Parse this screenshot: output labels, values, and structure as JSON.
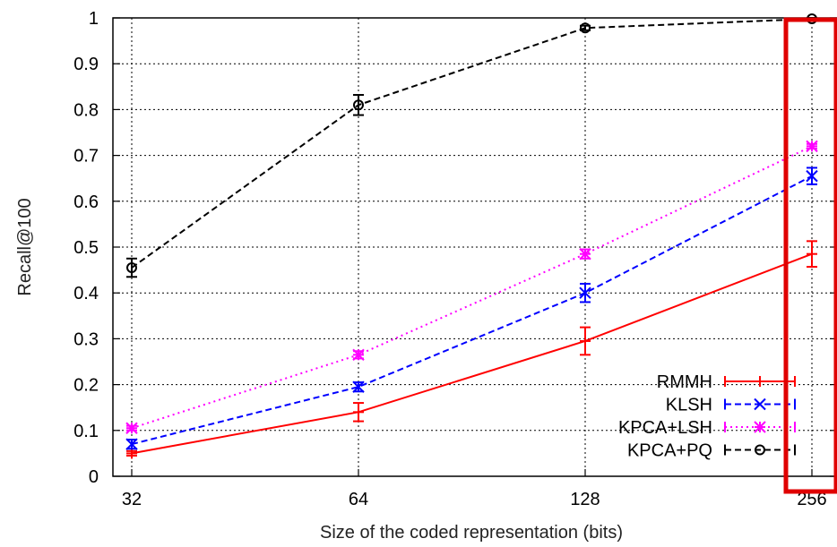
{
  "chart_data": {
    "type": "line",
    "xlabel": "Size of the coded representation (bits)",
    "ylabel": "Recall@100",
    "x_scale": "log2",
    "categories": [
      "32",
      "64",
      "128",
      "256"
    ],
    "x": [
      32,
      64,
      128,
      256
    ],
    "xlim": [
      32,
      256
    ],
    "ylim": [
      0,
      1
    ],
    "yticks": [
      "0",
      "0.1",
      "0.2",
      "0.3",
      "0.4",
      "0.5",
      "0.6",
      "0.7",
      "0.8",
      "0.9",
      "1"
    ],
    "grid": true,
    "legend_position": "bottom-right",
    "series": [
      {
        "name": "RMMH",
        "color": "#ff0000",
        "dash": "solid",
        "marker": "plus",
        "values": [
          0.05,
          0.14,
          0.295,
          0.485
        ],
        "errors": [
          0.005,
          0.02,
          0.03,
          0.028
        ]
      },
      {
        "name": "KLSH",
        "color": "#0000ff",
        "dash": "dashed",
        "marker": "x",
        "values": [
          0.07,
          0.195,
          0.4,
          0.655
        ],
        "errors": [
          0.01,
          0.01,
          0.02,
          0.018
        ]
      },
      {
        "name": "KPCA+LSH",
        "color": "#ff00ff",
        "dash": "dotted",
        "marker": "star",
        "values": [
          0.105,
          0.265,
          0.485,
          0.72
        ],
        "errors": [
          0.005,
          0.008,
          0.01,
          0.005
        ]
      },
      {
        "name": "KPCA+PQ",
        "color": "#000000",
        "dash": "dashed",
        "marker": "circle",
        "values": [
          0.455,
          0.81,
          0.978,
          0.998
        ],
        "errors": [
          0.02,
          0.022,
          0.005,
          0.002
        ]
      }
    ],
    "highlight": {
      "color": "#e00000",
      "target": "256"
    }
  }
}
